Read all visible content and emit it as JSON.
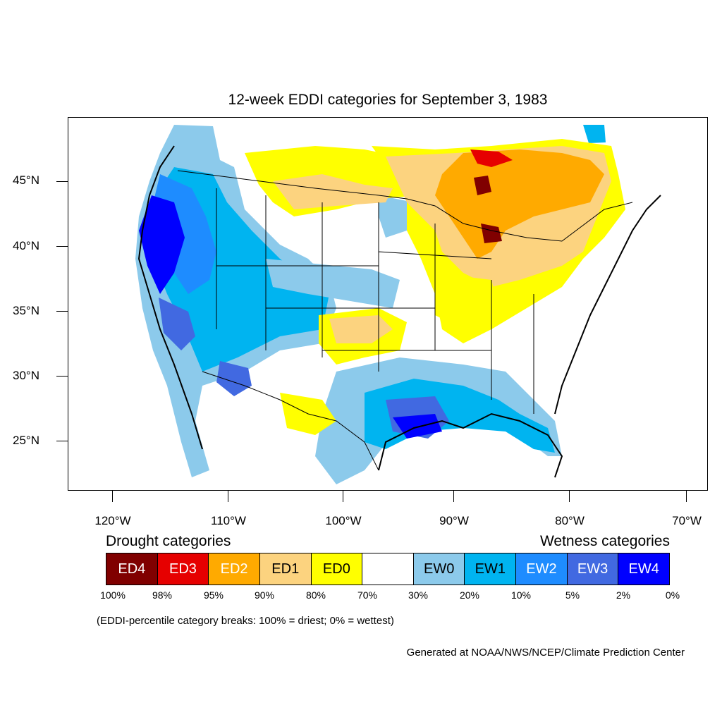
{
  "title": "12-week EDDI categories for September 3, 1983",
  "map": {
    "projection": "lat-lon",
    "lon_range": [
      -124.1,
      -68.5
    ],
    "lat_range": [
      21,
      49.5
    ],
    "lat_ticks": [
      {
        "value": 45,
        "label": "45°N"
      },
      {
        "value": 40,
        "label": "40°N"
      },
      {
        "value": 35,
        "label": "35°N"
      },
      {
        "value": 30,
        "label": "30°N"
      },
      {
        "value": 25,
        "label": "25°N"
      }
    ],
    "lon_ticks": [
      {
        "value": -120,
        "label": "120°W"
      },
      {
        "value": -110,
        "label": "110°W"
      },
      {
        "value": -100,
        "label": "100°W"
      },
      {
        "value": -90,
        "label": "90°W"
      },
      {
        "value": -80,
        "label": "80°W"
      },
      {
        "value": -70,
        "label": "70°W"
      }
    ]
  },
  "legend": {
    "drought_heading": "Drought categories",
    "wetness_heading": "Wetness categories",
    "categories": [
      {
        "label": "ED4",
        "color": "#800000",
        "text_color": "#ffffff"
      },
      {
        "label": "ED3",
        "color": "#e60000",
        "text_color": "#ffffff"
      },
      {
        "label": "ED2",
        "color": "#ffaa00",
        "text_color": "#ffffff"
      },
      {
        "label": "ED1",
        "color": "#fcd37f",
        "text_color": "#000000"
      },
      {
        "label": "ED0",
        "color": "#ffff00",
        "text_color": "#000000"
      },
      {
        "label": "",
        "color": "#ffffff",
        "text_color": "#000000"
      },
      {
        "label": "EW0",
        "color": "#8ccaeb",
        "text_color": "#000000"
      },
      {
        "label": "EW1",
        "color": "#00b4f0",
        "text_color": "#000000"
      },
      {
        "label": "EW2",
        "color": "#1e8cff",
        "text_color": "#ffffff"
      },
      {
        "label": "EW3",
        "color": "#4169e1",
        "text_color": "#ffffff"
      },
      {
        "label": "EW4",
        "color": "#0000ff",
        "text_color": "#ffffff"
      }
    ],
    "breaks": [
      "100%",
      "98%",
      "95%",
      "90%",
      "80%",
      "70%",
      "30%",
      "20%",
      "10%",
      "5%",
      "2%",
      "0%"
    ]
  },
  "note": "(EDDI-percentile category breaks: 100% = driest; 0% = wettest)",
  "credit": "Generated at NOAA/NWS/NCEP/Climate Prediction Center"
}
